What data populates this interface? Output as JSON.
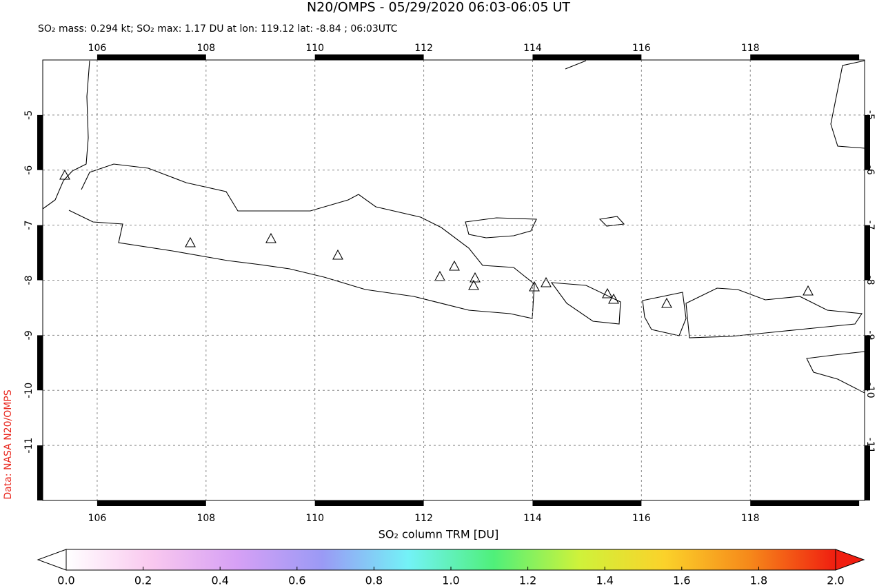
{
  "title": "N20/OMPS - 05/29/2020 06:03-06:05 UT",
  "subtitle": "SO₂ mass: 0.294 kt; SO₂ max: 1.17 DU at lon: 119.12 lat: -8.84 ; 06:03UTC",
  "credit": "Data: NASA N20/OMPS",
  "map": {
    "xlim": [
      105.0,
      120.1
    ],
    "ylim": [
      -12.0,
      -4.0
    ],
    "xticks": [
      106,
      108,
      110,
      112,
      114,
      116,
      118
    ],
    "yticks": [
      -5,
      -6,
      -7,
      -8,
      -9,
      -10,
      -11
    ],
    "grid": true
  },
  "colorbar": {
    "label": "SO₂ column TRM [DU]",
    "lim": [
      0,
      2
    ],
    "colors": [
      "#ffffff",
      "#f9c8ef",
      "#d6a0f5",
      "#9a9af5",
      "#73f2f7",
      "#4ff07a",
      "#cff23a",
      "#fbd22a",
      "#f6881a",
      "#f01e10"
    ],
    "ticks": [
      {
        "value": 0,
        "label": "0.0"
      },
      {
        "value": 0.2,
        "label": "0.2"
      },
      {
        "value": 0.4,
        "label": "0.4"
      },
      {
        "value": 0.6,
        "label": "0.6"
      },
      {
        "value": 0.8,
        "label": "0.8"
      },
      {
        "value": 1,
        "label": "1.0"
      },
      {
        "value": 1.2,
        "label": "1.2"
      },
      {
        "value": 1.4,
        "label": "1.4"
      },
      {
        "value": 1.6,
        "label": "1.6"
      },
      {
        "value": 1.8,
        "label": "1.8"
      },
      {
        "value": 2,
        "label": "2.0"
      }
    ]
  }
}
